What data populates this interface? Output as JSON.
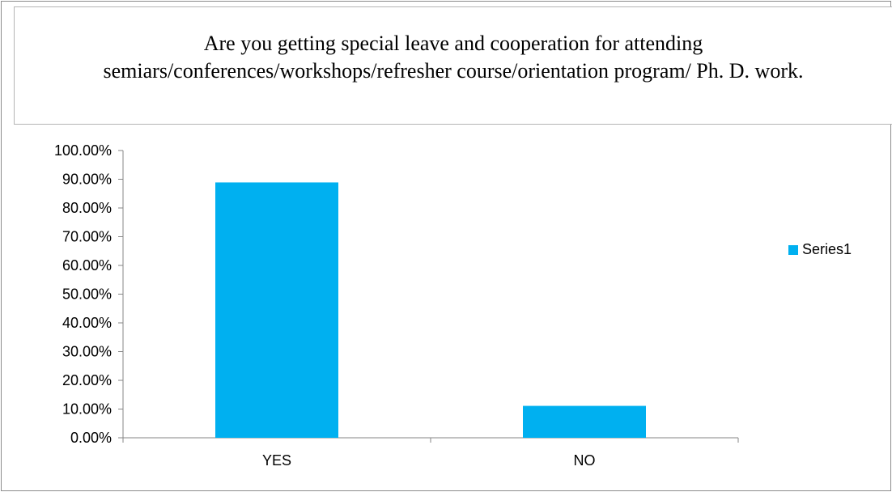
{
  "chart_data": {
    "type": "bar",
    "title": "Are you getting special leave and cooperation for attending semiars/conferences/workshops/refresher course/orientation program/ Ph. D. work.",
    "categories": [
      "YES",
      "NO"
    ],
    "series": [
      {
        "name": "Series1",
        "values": [
          0.8889,
          0.1111
        ],
        "color": "#00b0f0"
      }
    ],
    "ylim": [
      0,
      1
    ],
    "yticks": [
      "0.00%",
      "10.00%",
      "20.00%",
      "30.00%",
      "40.00%",
      "50.00%",
      "60.00%",
      "70.00%",
      "80.00%",
      "90.00%",
      "100.00%"
    ],
    "grid": false,
    "legend_position": "right",
    "xlabel": "",
    "ylabel": ""
  }
}
